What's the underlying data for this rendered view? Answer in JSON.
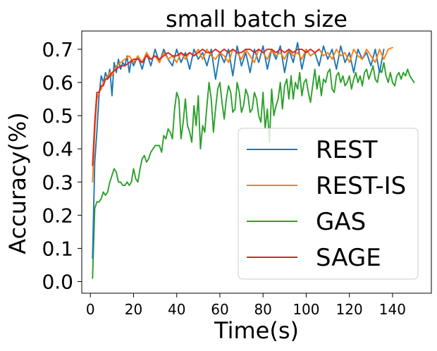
{
  "chart_data": {
    "type": "line",
    "title": "small batch size",
    "xlabel": "Time(s)",
    "ylabel": "Accuracy(%)",
    "xlim": [
      -4,
      158
    ],
    "ylim": [
      -0.035,
      0.755
    ],
    "xticks": [
      0,
      20,
      40,
      60,
      80,
      100,
      120,
      140
    ],
    "yticks": [
      0.0,
      0.1,
      0.2,
      0.3,
      0.4,
      0.5,
      0.6,
      0.7
    ],
    "xtick_labels": [
      "0",
      "20",
      "40",
      "60",
      "80",
      "100",
      "120",
      "140"
    ],
    "ytick_labels": [
      "0.0",
      "0.1",
      "0.2",
      "0.3",
      "0.4",
      "0.5",
      "0.6",
      "0.7"
    ],
    "legend_position": "lower-right",
    "series": [
      {
        "name": "REST",
        "color": "#1f77b4",
        "x": [
          1,
          2,
          3,
          4,
          5,
          6,
          7,
          8,
          9,
          10,
          11,
          12,
          13,
          14,
          15,
          16,
          17,
          18,
          19,
          20,
          22,
          24,
          26,
          28,
          30,
          32,
          34,
          36,
          38,
          40,
          42,
          44,
          46,
          48,
          50,
          52,
          54,
          56,
          58,
          60,
          62,
          64,
          66,
          68,
          70,
          72,
          74,
          76,
          78,
          80,
          82,
          84,
          86,
          88,
          90,
          92,
          94,
          96,
          98,
          100,
          102,
          104,
          106,
          108,
          110,
          112,
          114,
          116,
          118,
          120,
          122,
          124,
          126,
          128,
          130,
          132,
          134,
          136
        ],
        "values": [
          0.07,
          0.36,
          0.45,
          0.56,
          0.62,
          0.6,
          0.63,
          0.61,
          0.64,
          0.56,
          0.66,
          0.63,
          0.67,
          0.64,
          0.66,
          0.65,
          0.68,
          0.63,
          0.67,
          0.65,
          0.68,
          0.64,
          0.69,
          0.65,
          0.7,
          0.66,
          0.7,
          0.67,
          0.65,
          0.7,
          0.66,
          0.69,
          0.64,
          0.7,
          0.67,
          0.69,
          0.65,
          0.7,
          0.61,
          0.69,
          0.66,
          0.7,
          0.62,
          0.71,
          0.65,
          0.69,
          0.63,
          0.7,
          0.66,
          0.71,
          0.64,
          0.7,
          0.67,
          0.71,
          0.63,
          0.7,
          0.66,
          0.72,
          0.64,
          0.7,
          0.68,
          0.69,
          0.65,
          0.71,
          0.67,
          0.7,
          0.64,
          0.71,
          0.66,
          0.69,
          0.63,
          0.7,
          0.67,
          0.69,
          0.65,
          0.7,
          0.63,
          0.7
        ]
      },
      {
        "name": "REST-IS",
        "color": "#ff7f0e",
        "x": [
          1,
          2,
          3,
          4,
          5,
          6,
          7,
          8,
          9,
          10,
          12,
          14,
          16,
          18,
          20,
          22,
          24,
          26,
          28,
          30,
          32,
          34,
          36,
          38,
          40,
          42,
          44,
          46,
          48,
          50,
          52,
          54,
          56,
          58,
          60,
          62,
          64,
          66,
          68,
          70,
          72,
          74,
          76,
          78,
          80,
          82,
          84,
          86,
          88,
          90,
          92,
          94,
          96,
          98,
          100,
          102,
          104,
          106,
          108,
          110,
          112,
          114,
          116,
          118,
          120,
          122,
          124,
          126,
          128,
          130,
          132,
          134,
          136,
          138,
          140
        ],
        "values": [
          0.3,
          0.45,
          0.55,
          0.57,
          0.58,
          0.6,
          0.61,
          0.62,
          0.63,
          0.62,
          0.65,
          0.66,
          0.67,
          0.68,
          0.66,
          0.68,
          0.66,
          0.69,
          0.67,
          0.68,
          0.66,
          0.69,
          0.67,
          0.68,
          0.66,
          0.69,
          0.67,
          0.69,
          0.68,
          0.7,
          0.67,
          0.7,
          0.68,
          0.67,
          0.69,
          0.68,
          0.66,
          0.7,
          0.69,
          0.67,
          0.7,
          0.68,
          0.66,
          0.7,
          0.69,
          0.67,
          0.7,
          0.68,
          0.69,
          0.67,
          0.7,
          0.68,
          0.69,
          0.67,
          0.7,
          0.68,
          0.69,
          0.7,
          0.68,
          0.69,
          0.67,
          0.7,
          0.68,
          0.69,
          0.66,
          0.7,
          0.68,
          0.67,
          0.7,
          0.68,
          0.66,
          0.7,
          0.67,
          0.7,
          0.705
        ]
      },
      {
        "name": "GAS",
        "color": "#2ca02c",
        "x": [
          1,
          2,
          3,
          4,
          5,
          6,
          7,
          8,
          9,
          10,
          11,
          12,
          13,
          14,
          15,
          16,
          17,
          18,
          19,
          20,
          21,
          22,
          23,
          24,
          25,
          26,
          27,
          28,
          29,
          30,
          31,
          32,
          33,
          34,
          35,
          36,
          37,
          38,
          39,
          40,
          41,
          42,
          43,
          44,
          45,
          46,
          47,
          48,
          49,
          50,
          51,
          52,
          53,
          54,
          55,
          56,
          57,
          58,
          59,
          60,
          61,
          62,
          63,
          64,
          65,
          66,
          67,
          68,
          69,
          70,
          71,
          72,
          73,
          74,
          75,
          76,
          77,
          78,
          79,
          80,
          81,
          82,
          83,
          84,
          85,
          86,
          87,
          88,
          89,
          90,
          91,
          92,
          93,
          94,
          95,
          96,
          97,
          98,
          99,
          100,
          101,
          102,
          103,
          104,
          105,
          106,
          107,
          108,
          109,
          110,
          111,
          112,
          113,
          114,
          115,
          116,
          117,
          118,
          119,
          120,
          121,
          122,
          123,
          124,
          125,
          126,
          127,
          128,
          129,
          130,
          131,
          132,
          133,
          134,
          135,
          136,
          137,
          138,
          139,
          140,
          141,
          142,
          143,
          144,
          145,
          146,
          147,
          148,
          149,
          150
        ],
        "values": [
          0.01,
          0.22,
          0.24,
          0.24,
          0.25,
          0.27,
          0.26,
          0.27,
          0.3,
          0.32,
          0.34,
          0.33,
          0.3,
          0.3,
          0.29,
          0.29,
          0.3,
          0.29,
          0.3,
          0.34,
          0.31,
          0.3,
          0.34,
          0.37,
          0.38,
          0.36,
          0.37,
          0.39,
          0.4,
          0.41,
          0.41,
          0.41,
          0.39,
          0.44,
          0.43,
          0.46,
          0.45,
          0.43,
          0.52,
          0.57,
          0.55,
          0.43,
          0.48,
          0.55,
          0.47,
          0.45,
          0.42,
          0.53,
          0.47,
          0.56,
          0.4,
          0.47,
          0.45,
          0.53,
          0.6,
          0.55,
          0.45,
          0.52,
          0.58,
          0.6,
          0.54,
          0.49,
          0.55,
          0.59,
          0.57,
          0.51,
          0.52,
          0.6,
          0.57,
          0.51,
          0.53,
          0.58,
          0.56,
          0.51,
          0.52,
          0.57,
          0.55,
          0.5,
          0.48,
          0.57,
          0.46,
          0.52,
          0.42,
          0.58,
          0.5,
          0.53,
          0.55,
          0.6,
          0.52,
          0.59,
          0.61,
          0.55,
          0.62,
          0.55,
          0.6,
          0.58,
          0.63,
          0.56,
          0.6,
          0.61,
          0.57,
          0.54,
          0.59,
          0.64,
          0.58,
          0.62,
          0.56,
          0.61,
          0.6,
          0.63,
          0.64,
          0.58,
          0.57,
          0.62,
          0.63,
          0.6,
          0.62,
          0.59,
          0.6,
          0.62,
          0.58,
          0.61,
          0.63,
          0.6,
          0.62,
          0.59,
          0.63,
          0.64,
          0.61,
          0.63,
          0.65,
          0.61,
          0.6,
          0.64,
          0.63,
          0.66,
          0.62,
          0.6,
          0.63,
          0.6,
          0.59,
          0.62,
          0.63,
          0.61,
          0.63,
          0.62,
          0.64,
          0.62,
          0.61,
          0.6
        ]
      },
      {
        "name": "SAGE",
        "color": "#d62728",
        "x": [
          1,
          2,
          3,
          4,
          5,
          6,
          7,
          8,
          9,
          10,
          12,
          14,
          16,
          18,
          20,
          22,
          24,
          26,
          28,
          30,
          32,
          34,
          36,
          38,
          40,
          42,
          44,
          46,
          48,
          50,
          52,
          54,
          56,
          58,
          60,
          62,
          64,
          66,
          68,
          70,
          72,
          74,
          76,
          78,
          80,
          82,
          84,
          86,
          88,
          90,
          92,
          94,
          96,
          98,
          100,
          102,
          104,
          106
        ],
        "values": [
          0.35,
          0.48,
          0.57,
          0.57,
          0.59,
          0.59,
          0.61,
          0.61,
          0.62,
          0.63,
          0.64,
          0.65,
          0.65,
          0.66,
          0.67,
          0.67,
          0.66,
          0.68,
          0.67,
          0.68,
          0.67,
          0.68,
          0.69,
          0.68,
          0.68,
          0.69,
          0.68,
          0.69,
          0.68,
          0.69,
          0.7,
          0.69,
          0.69,
          0.7,
          0.69,
          0.7,
          0.69,
          0.7,
          0.69,
          0.69,
          0.7,
          0.7,
          0.69,
          0.7,
          0.69,
          0.7,
          0.7,
          0.69,
          0.7,
          0.69,
          0.7,
          0.69,
          0.7,
          0.7,
          0.69,
          0.7,
          0.69,
          0.7
        ]
      }
    ]
  }
}
